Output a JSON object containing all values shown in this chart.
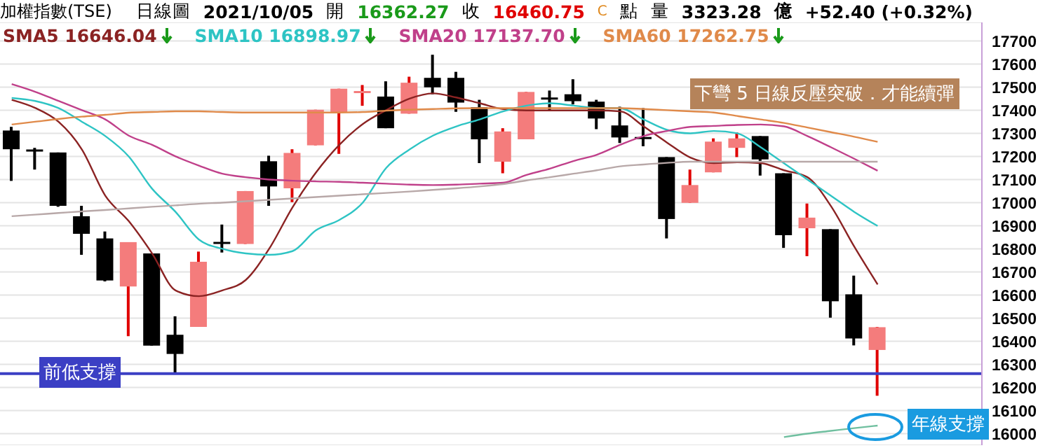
{
  "chart_data": {
    "type": "candlestick",
    "title": "加權指數(TSE)",
    "categories": [
      null,
      null,
      null,
      null,
      null,
      null,
      null,
      null,
      null,
      null,
      null,
      null,
      null,
      null,
      null,
      null,
      null,
      null,
      null,
      null,
      null,
      null,
      null,
      null,
      null,
      null,
      null,
      null,
      null,
      null,
      null,
      null,
      null,
      null,
      null,
      null,
      null,
      null
    ],
    "ohlc": [
      [
        17312,
        17328,
        17094,
        17231
      ],
      [
        17230,
        17237,
        17143,
        17227
      ],
      [
        17217,
        17217,
        16982,
        16986
      ],
      [
        16941,
        16986,
        16774,
        16865
      ],
      [
        16845,
        16875,
        16659,
        16663
      ],
      [
        16637,
        16829,
        16422,
        16829
      ],
      [
        16780,
        16780,
        16381,
        16381
      ],
      [
        16428,
        16508,
        16261,
        16345
      ],
      [
        16462,
        16788,
        16462,
        16744
      ],
      [
        16830,
        16905,
        16784,
        16828
      ],
      [
        16821,
        17050,
        16821,
        17050
      ],
      [
        17179,
        17203,
        16986,
        17070
      ],
      [
        17062,
        17231,
        17002,
        17215
      ],
      [
        17248,
        17402,
        17248,
        17402
      ],
      [
        17391,
        17493,
        17211,
        17493
      ],
      [
        17477,
        17509,
        17419,
        17483
      ],
      [
        17459,
        17525,
        17322,
        17322
      ],
      [
        17385,
        17545,
        17385,
        17519
      ],
      [
        17540,
        17640,
        17469,
        17499
      ],
      [
        17540,
        17566,
        17393,
        17433
      ],
      [
        17413,
        17445,
        17171,
        17274
      ],
      [
        17177,
        17322,
        17127,
        17308
      ],
      [
        17274,
        17479,
        17274,
        17479
      ],
      [
        17455,
        17485,
        17399,
        17453
      ],
      [
        17469,
        17534,
        17425,
        17439
      ],
      [
        17437,
        17445,
        17318,
        17364
      ],
      [
        17334,
        17415,
        17258,
        17282
      ],
      [
        17284,
        17409,
        17244,
        17282
      ],
      [
        17197,
        17197,
        16845,
        16929
      ],
      [
        16999,
        17143,
        16999,
        17076
      ],
      [
        17131,
        17278,
        17131,
        17264
      ],
      [
        17237,
        17304,
        17197,
        17278
      ],
      [
        17288,
        17288,
        17117,
        17187
      ],
      [
        17127,
        17127,
        16804,
        16859
      ],
      [
        16889,
        16996,
        16768,
        16935
      ],
      [
        16885,
        16885,
        16502,
        16573
      ],
      [
        16603,
        16684,
        16382,
        16412
      ],
      [
        16362.27,
        16462,
        16164,
        16460.75
      ]
    ],
    "series": [
      {
        "type": "line",
        "name": "SMA5 16646.04",
        "color": "#8b2323",
        "values": [
          17445,
          17410,
          17350,
          17230,
          17030,
          16920,
          16780,
          16620,
          16595,
          16620,
          16665,
          16800,
          16980,
          17130,
          17250,
          17340,
          17400,
          17450,
          17473,
          17455,
          17430,
          17405,
          17399,
          17399,
          17399,
          17399,
          17395,
          17330,
          17260,
          17195,
          17171,
          17175,
          17171,
          17140,
          17110,
          16986,
          16810,
          16646
        ]
      },
      {
        "type": "line",
        "name": "SMA10 16898.97",
        "color": "#2ec4c4",
        "values": [
          17453,
          17440,
          17409,
          17350,
          17288,
          17200,
          17060,
          16960,
          16840,
          16800,
          16780,
          16774,
          16790,
          16880,
          16925,
          17000,
          17150,
          17230,
          17290,
          17330,
          17360,
          17395,
          17420,
          17430,
          17420,
          17410,
          17409,
          17360,
          17315,
          17300,
          17310,
          17300,
          17240,
          17170,
          17100,
          17030,
          16960,
          16899
        ]
      },
      {
        "type": "line",
        "name": "SMA20 17137.70",
        "color": "#c0408a",
        "values": [
          17513,
          17480,
          17440,
          17400,
          17360,
          17290,
          17250,
          17200,
          17160,
          17125,
          17110,
          17100,
          17095,
          17092,
          17090,
          17086,
          17082,
          17078,
          17076,
          17078,
          17082,
          17086,
          17120,
          17147,
          17180,
          17207,
          17250,
          17288,
          17310,
          17328,
          17332,
          17336,
          17338,
          17330,
          17288,
          17240,
          17190,
          17138
        ]
      },
      {
        "type": "line",
        "name": "SMA60 17262.75",
        "color": "#e08a4a",
        "values": [
          17338,
          17350,
          17362,
          17372,
          17380,
          17389,
          17392,
          17395,
          17395,
          17392,
          17390,
          17390,
          17390,
          17390,
          17390,
          17392,
          17398,
          17402,
          17405,
          17408,
          17409,
          17409,
          17409,
          17409,
          17409,
          17409,
          17409,
          17405,
          17400,
          17395,
          17390,
          17375,
          17360,
          17345,
          17325,
          17305,
          17285,
          17263
        ]
      },
      {
        "type": "line",
        "color": "#b8a8a8",
        "values": [
          16941,
          16948,
          16955,
          16962,
          16968,
          16975,
          16982,
          16988,
          16995,
          17000,
          17006,
          17012,
          17018,
          17024,
          17030,
          17036,
          17042,
          17048,
          17055,
          17062,
          17070,
          17080,
          17096,
          17110,
          17125,
          17140,
          17157,
          17165,
          17172,
          17177,
          17177,
          17177,
          17177,
          17177,
          17177,
          17177,
          17177,
          17177
        ]
      },
      {
        "type": "line",
        "color": "#6fbf9f",
        "values": [
          null,
          null,
          null,
          null,
          null,
          null,
          null,
          null,
          null,
          null,
          null,
          null,
          null,
          null,
          null,
          null,
          null,
          null,
          null,
          null,
          null,
          null,
          null,
          null,
          null,
          null,
          null,
          null,
          null,
          null,
          null,
          null,
          null,
          15985,
          16000,
          16012,
          16024,
          16035
        ]
      }
    ],
    "ylim": [
      15950,
      17780
    ],
    "yticks": [
      16000,
      16100,
      16200,
      16300,
      16400,
      16500,
      16600,
      16700,
      16800,
      16900,
      17000,
      17100,
      17200,
      17300,
      17400,
      17500,
      17600,
      17700
    ],
    "tick_labels": "y",
    "grid": "y",
    "legend": "top left",
    "ref_lines": [
      {
        "axis": "y",
        "value": 16260,
        "label": "前低支撐",
        "color": "#3b3fc4"
      }
    ],
    "annotations": [
      "日線圖",
      "2021/10/05",
      "開",
      "16362.27",
      "收",
      "16460.75",
      "C",
      "點",
      "量",
      "3323.28",
      "億",
      "+52.40 (+0.32%)",
      "下彎 5 日線反壓突破．才能續彈",
      "年線支撐"
    ]
  }
}
